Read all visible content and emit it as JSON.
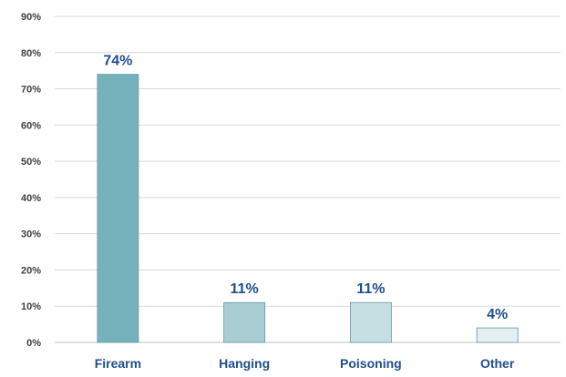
{
  "chart_data": {
    "type": "bar",
    "categories": [
      "Firearm",
      "Hanging",
      "Poisoning",
      "Other"
    ],
    "values": [
      74,
      11,
      11,
      4
    ],
    "value_labels": [
      "74%",
      "11%",
      "11%",
      "4%"
    ],
    "yticks": [
      "0%",
      "10%",
      "20%",
      "30%",
      "40%",
      "50%",
      "60%",
      "70%",
      "80%",
      "90%"
    ],
    "ylim": [
      0,
      90
    ],
    "title": "",
    "xlabel": "",
    "ylabel": "",
    "grid": true,
    "legend": "none",
    "colors": [
      "#76b2bb",
      "#a9cdd3",
      "#c6dfe3",
      "#e3eff1"
    ],
    "label_color": "#1f4e8c"
  }
}
